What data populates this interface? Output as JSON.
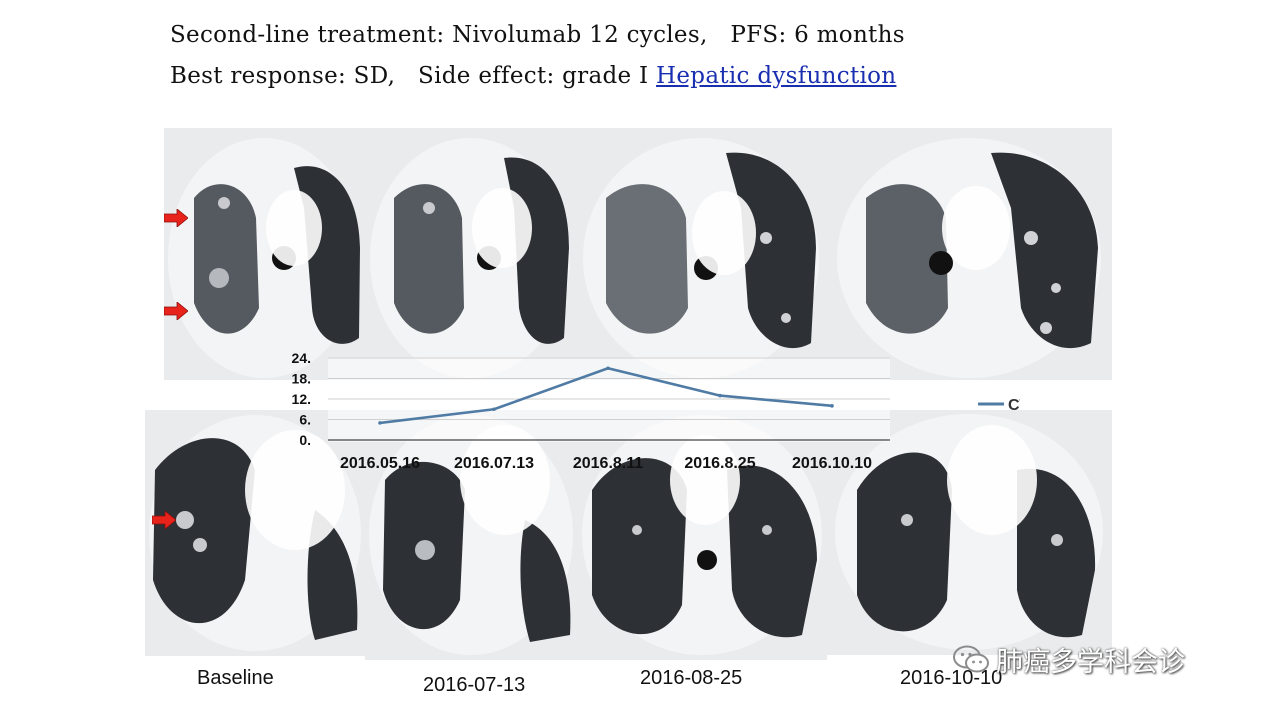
{
  "header": {
    "line1": "Second-line treatment: Nivolumab 12 cycles,   PFS: 6 months",
    "line2_prefix": "Best response: SD,   Side effect: grade Ⅰ ",
    "line2_link": "Hepatic dysfunction"
  },
  "scan_labels": [
    "Baseline",
    "2016-07-13",
    "2016-08-25",
    "2016-10-10"
  ],
  "watermark": {
    "text": "肺癌多学科会诊",
    "icon": "wechat-icon"
  },
  "colors": {
    "series": "#4f7ba5",
    "arrow": "#e8231c",
    "link": "#1a2fb0"
  },
  "chart_data": {
    "type": "line",
    "categories": [
      "2016.05.16",
      "2016.07.13",
      "2016.8.11",
      "2016.8.25",
      "2016.10.10"
    ],
    "series": [
      {
        "name": "CTC",
        "values": [
          5,
          9,
          21,
          13,
          10
        ]
      }
    ],
    "y_ticks": [
      "0.",
      "6.",
      "12.",
      "18.",
      "24."
    ],
    "ylim": [
      0,
      24
    ],
    "grid": true,
    "legend": "right"
  }
}
